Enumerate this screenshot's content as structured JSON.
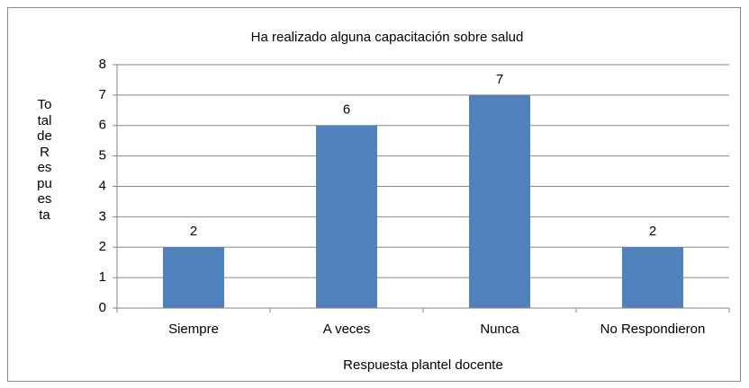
{
  "chart_data": {
    "type": "bar",
    "title": "Ha realizado alguna capacitación sobre salud",
    "categories": [
      "Siempre",
      "A veces",
      "Nunca",
      "No Respondieron"
    ],
    "values": [
      2,
      6,
      7,
      2
    ],
    "color": "#4f81bd",
    "x_label": "Respuesta plantel docente",
    "y_label": "Total de Respuesta",
    "ylim": [
      0,
      8
    ],
    "yticks": [
      0,
      1,
      2,
      3,
      4,
      5,
      6,
      7,
      8
    ],
    "grid": true
  }
}
